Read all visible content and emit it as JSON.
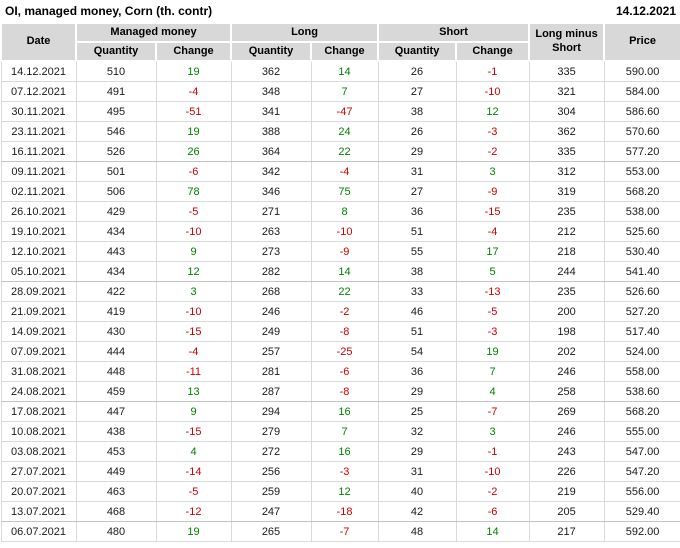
{
  "title": "OI, managed money, Corn (th. contr)",
  "report_date": "14.12.2021",
  "colors": {
    "positive_change": "#008000",
    "negative_change": "#cc0000",
    "header_background": "#d8d8d8",
    "grid_line": "#d9d9d9"
  },
  "table": {
    "headers": {
      "date": "Date",
      "managed_money": "Managed money",
      "long": "Long",
      "short": "Short",
      "long_minus_short": "Long minus Short",
      "price": "Price",
      "quantity": "Quantity",
      "change": "Change"
    },
    "rows": [
      {
        "date": "14.12.2021",
        "mm_qty": 510,
        "mm_chg": 19,
        "long_qty": 362,
        "long_chg": 14,
        "short_qty": 26,
        "short_chg": -1,
        "lms": 335,
        "price": "590.00"
      },
      {
        "date": "07.12.2021",
        "mm_qty": 491,
        "mm_chg": -4,
        "long_qty": 348,
        "long_chg": 7,
        "short_qty": 27,
        "short_chg": -10,
        "lms": 321,
        "price": "584.00"
      },
      {
        "date": "30.11.2021",
        "mm_qty": 495,
        "mm_chg": -51,
        "long_qty": 341,
        "long_chg": -47,
        "short_qty": 38,
        "short_chg": 12,
        "lms": 304,
        "price": "586.60"
      },
      {
        "date": "23.11.2021",
        "mm_qty": 546,
        "mm_chg": 19,
        "long_qty": 388,
        "long_chg": 24,
        "short_qty": 26,
        "short_chg": -3,
        "lms": 362,
        "price": "570.60"
      },
      {
        "date": "16.11.2021",
        "mm_qty": 526,
        "mm_chg": 26,
        "long_qty": 364,
        "long_chg": 22,
        "short_qty": 29,
        "short_chg": -2,
        "lms": 335,
        "price": "577.20"
      },
      {
        "date": "09.11.2021",
        "mm_qty": 501,
        "mm_chg": -6,
        "long_qty": 342,
        "long_chg": -4,
        "short_qty": 31,
        "short_chg": 3,
        "lms": 312,
        "price": "553.00"
      },
      {
        "date": "02.11.2021",
        "mm_qty": 506,
        "mm_chg": 78,
        "long_qty": 346,
        "long_chg": 75,
        "short_qty": 27,
        "short_chg": -9,
        "lms": 319,
        "price": "568.20"
      },
      {
        "date": "26.10.2021",
        "mm_qty": 429,
        "mm_chg": -5,
        "long_qty": 271,
        "long_chg": 8,
        "short_qty": 36,
        "short_chg": -15,
        "lms": 235,
        "price": "538.00"
      },
      {
        "date": "19.10.2021",
        "mm_qty": 434,
        "mm_chg": -10,
        "long_qty": 263,
        "long_chg": -10,
        "short_qty": 51,
        "short_chg": -4,
        "lms": 212,
        "price": "525.60"
      },
      {
        "date": "12.10.2021",
        "mm_qty": 443,
        "mm_chg": 9,
        "long_qty": 273,
        "long_chg": -9,
        "short_qty": 55,
        "short_chg": 17,
        "lms": 218,
        "price": "530.40"
      },
      {
        "date": "05.10.2021",
        "mm_qty": 434,
        "mm_chg": 12,
        "long_qty": 282,
        "long_chg": 14,
        "short_qty": 38,
        "short_chg": 5,
        "lms": 244,
        "price": "541.40"
      },
      {
        "date": "28.09.2021",
        "mm_qty": 422,
        "mm_chg": 3,
        "long_qty": 268,
        "long_chg": 22,
        "short_qty": 33,
        "short_chg": -13,
        "lms": 235,
        "price": "526.60"
      },
      {
        "date": "21.09.2021",
        "mm_qty": 419,
        "mm_chg": -10,
        "long_qty": 246,
        "long_chg": -2,
        "short_qty": 46,
        "short_chg": -5,
        "lms": 200,
        "price": "527.20"
      },
      {
        "date": "14.09.2021",
        "mm_qty": 430,
        "mm_chg": -15,
        "long_qty": 249,
        "long_chg": -8,
        "short_qty": 51,
        "short_chg": -3,
        "lms": 198,
        "price": "517.40"
      },
      {
        "date": "07.09.2021",
        "mm_qty": 444,
        "mm_chg": -4,
        "long_qty": 257,
        "long_chg": -25,
        "short_qty": 54,
        "short_chg": 19,
        "lms": 202,
        "price": "524.00"
      },
      {
        "date": "31.08.2021",
        "mm_qty": 448,
        "mm_chg": -11,
        "long_qty": 281,
        "long_chg": -6,
        "short_qty": 36,
        "short_chg": 7,
        "lms": 246,
        "price": "558.00"
      },
      {
        "date": "24.08.2021",
        "mm_qty": 459,
        "mm_chg": 13,
        "long_qty": 287,
        "long_chg": -8,
        "short_qty": 29,
        "short_chg": 4,
        "lms": 258,
        "price": "538.60"
      },
      {
        "date": "17.08.2021",
        "mm_qty": 447,
        "mm_chg": 9,
        "long_qty": 294,
        "long_chg": 16,
        "short_qty": 25,
        "short_chg": -7,
        "lms": 269,
        "price": "568.20"
      },
      {
        "date": "10.08.2021",
        "mm_qty": 438,
        "mm_chg": -15,
        "long_qty": 279,
        "long_chg": 7,
        "short_qty": 32,
        "short_chg": 3,
        "lms": 246,
        "price": "555.00"
      },
      {
        "date": "03.08.2021",
        "mm_qty": 453,
        "mm_chg": 4,
        "long_qty": 272,
        "long_chg": 16,
        "short_qty": 29,
        "short_chg": -1,
        "lms": 243,
        "price": "547.00"
      },
      {
        "date": "27.07.2021",
        "mm_qty": 449,
        "mm_chg": -14,
        "long_qty": 256,
        "long_chg": -3,
        "short_qty": 31,
        "short_chg": -10,
        "lms": 226,
        "price": "547.20"
      },
      {
        "date": "20.07.2021",
        "mm_qty": 463,
        "mm_chg": -5,
        "long_qty": 259,
        "long_chg": 12,
        "short_qty": 40,
        "short_chg": -2,
        "lms": 219,
        "price": "556.00"
      },
      {
        "date": "13.07.2021",
        "mm_qty": 468,
        "mm_chg": -12,
        "long_qty": 247,
        "long_chg": -18,
        "short_qty": 42,
        "short_chg": -6,
        "lms": 205,
        "price": "529.40"
      },
      {
        "date": "06.07.2021",
        "mm_qty": 480,
        "mm_chg": 19,
        "long_qty": 265,
        "long_chg": -7,
        "short_qty": 48,
        "short_chg": 14,
        "lms": 217,
        "price": "592.00"
      }
    ]
  }
}
